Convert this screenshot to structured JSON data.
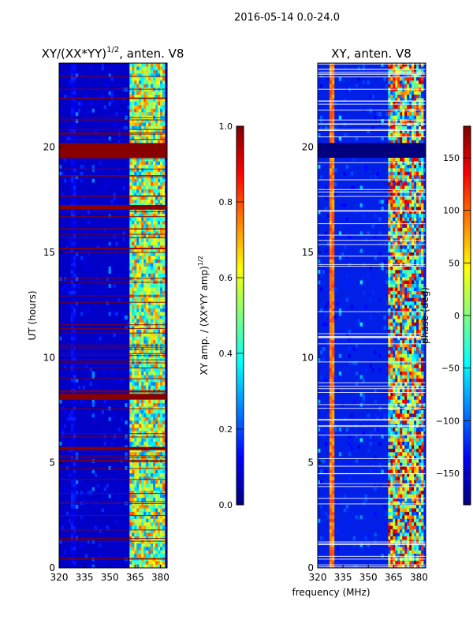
{
  "figure_title": "2016-05-14 0.0-24.0",
  "colors": {
    "jet": [
      "#00007f",
      "#0000ff",
      "#007fff",
      "#00ffff",
      "#7fff7f",
      "#ffff00",
      "#ff7f00",
      "#ff0000",
      "#7f0000"
    ],
    "frame": "#000000",
    "gap_band": "#880000"
  },
  "chart_data": [
    {
      "type": "heatmap",
      "title_main": "XY/(XX*YY)",
      "title_sup": "1/2",
      "title_tail": ", anten. V8",
      "xlabel": "",
      "ylabel": "UT (hours)",
      "xlim": [
        320,
        384
      ],
      "ylim": [
        0,
        24
      ],
      "xticks": [
        {
          "value": 320,
          "label": "320"
        },
        {
          "value": 335,
          "label": "335"
        },
        {
          "value": 350,
          "label": "350"
        },
        {
          "value": 365,
          "label": "365"
        },
        {
          "value": 380,
          "label": "380"
        }
      ],
      "yticks": [
        {
          "value": 0,
          "label": "0"
        },
        {
          "value": 5,
          "label": "5"
        },
        {
          "value": 10,
          "label": "10"
        },
        {
          "value": 15,
          "label": "15"
        },
        {
          "value": 20,
          "label": "20"
        }
      ],
      "saturated_bands_hours": [
        [
          19.5,
          20.2
        ],
        [
          17.05,
          17.25
        ],
        [
          8.0,
          8.25
        ],
        [
          5.6,
          5.75
        ]
      ],
      "colorbar": {
        "label_main": "XY amp. / (XX*YY amp)",
        "label_sup": "1/2",
        "range": [
          0.0,
          1.0
        ],
        "ticks": [
          {
            "value": 0.0,
            "label": "0.0"
          },
          {
            "value": 0.2,
            "label": "0.2"
          },
          {
            "value": 0.4,
            "label": "0.4"
          },
          {
            "value": 0.6,
            "label": "0.6"
          },
          {
            "value": 0.8,
            "label": "0.8"
          },
          {
            "value": 1.0,
            "label": "1.0"
          }
        ]
      }
    },
    {
      "type": "heatmap",
      "title_main": "XY, anten. V8",
      "xlabel": "frequency (MHz)",
      "ylabel": "",
      "xlim": [
        320,
        384
      ],
      "ylim": [
        0,
        24
      ],
      "xticks": [
        {
          "value": 320,
          "label": "320"
        },
        {
          "value": 335,
          "label": "335"
        },
        {
          "value": 350,
          "label": "350"
        },
        {
          "value": 365,
          "label": "365"
        },
        {
          "value": 380,
          "label": "380"
        }
      ],
      "yticks": [
        {
          "value": 0,
          "label": "0"
        },
        {
          "value": 5,
          "label": "5"
        },
        {
          "value": 10,
          "label": "10"
        },
        {
          "value": 15,
          "label": "15"
        },
        {
          "value": 20,
          "label": "20"
        }
      ],
      "saturated_bands_hours": [
        [
          19.5,
          20.2
        ]
      ],
      "colorbar": {
        "label_main": "phase (deg)",
        "range": [
          -180,
          180
        ],
        "ticks": [
          {
            "value": -150,
            "label": "−150"
          },
          {
            "value": -100,
            "label": "−100"
          },
          {
            "value": -50,
            "label": "−50"
          },
          {
            "value": 0,
            "label": "0"
          },
          {
            "value": 50,
            "label": "50"
          },
          {
            "value": 100,
            "label": "100"
          },
          {
            "value": 150,
            "label": "150"
          }
        ]
      }
    }
  ]
}
